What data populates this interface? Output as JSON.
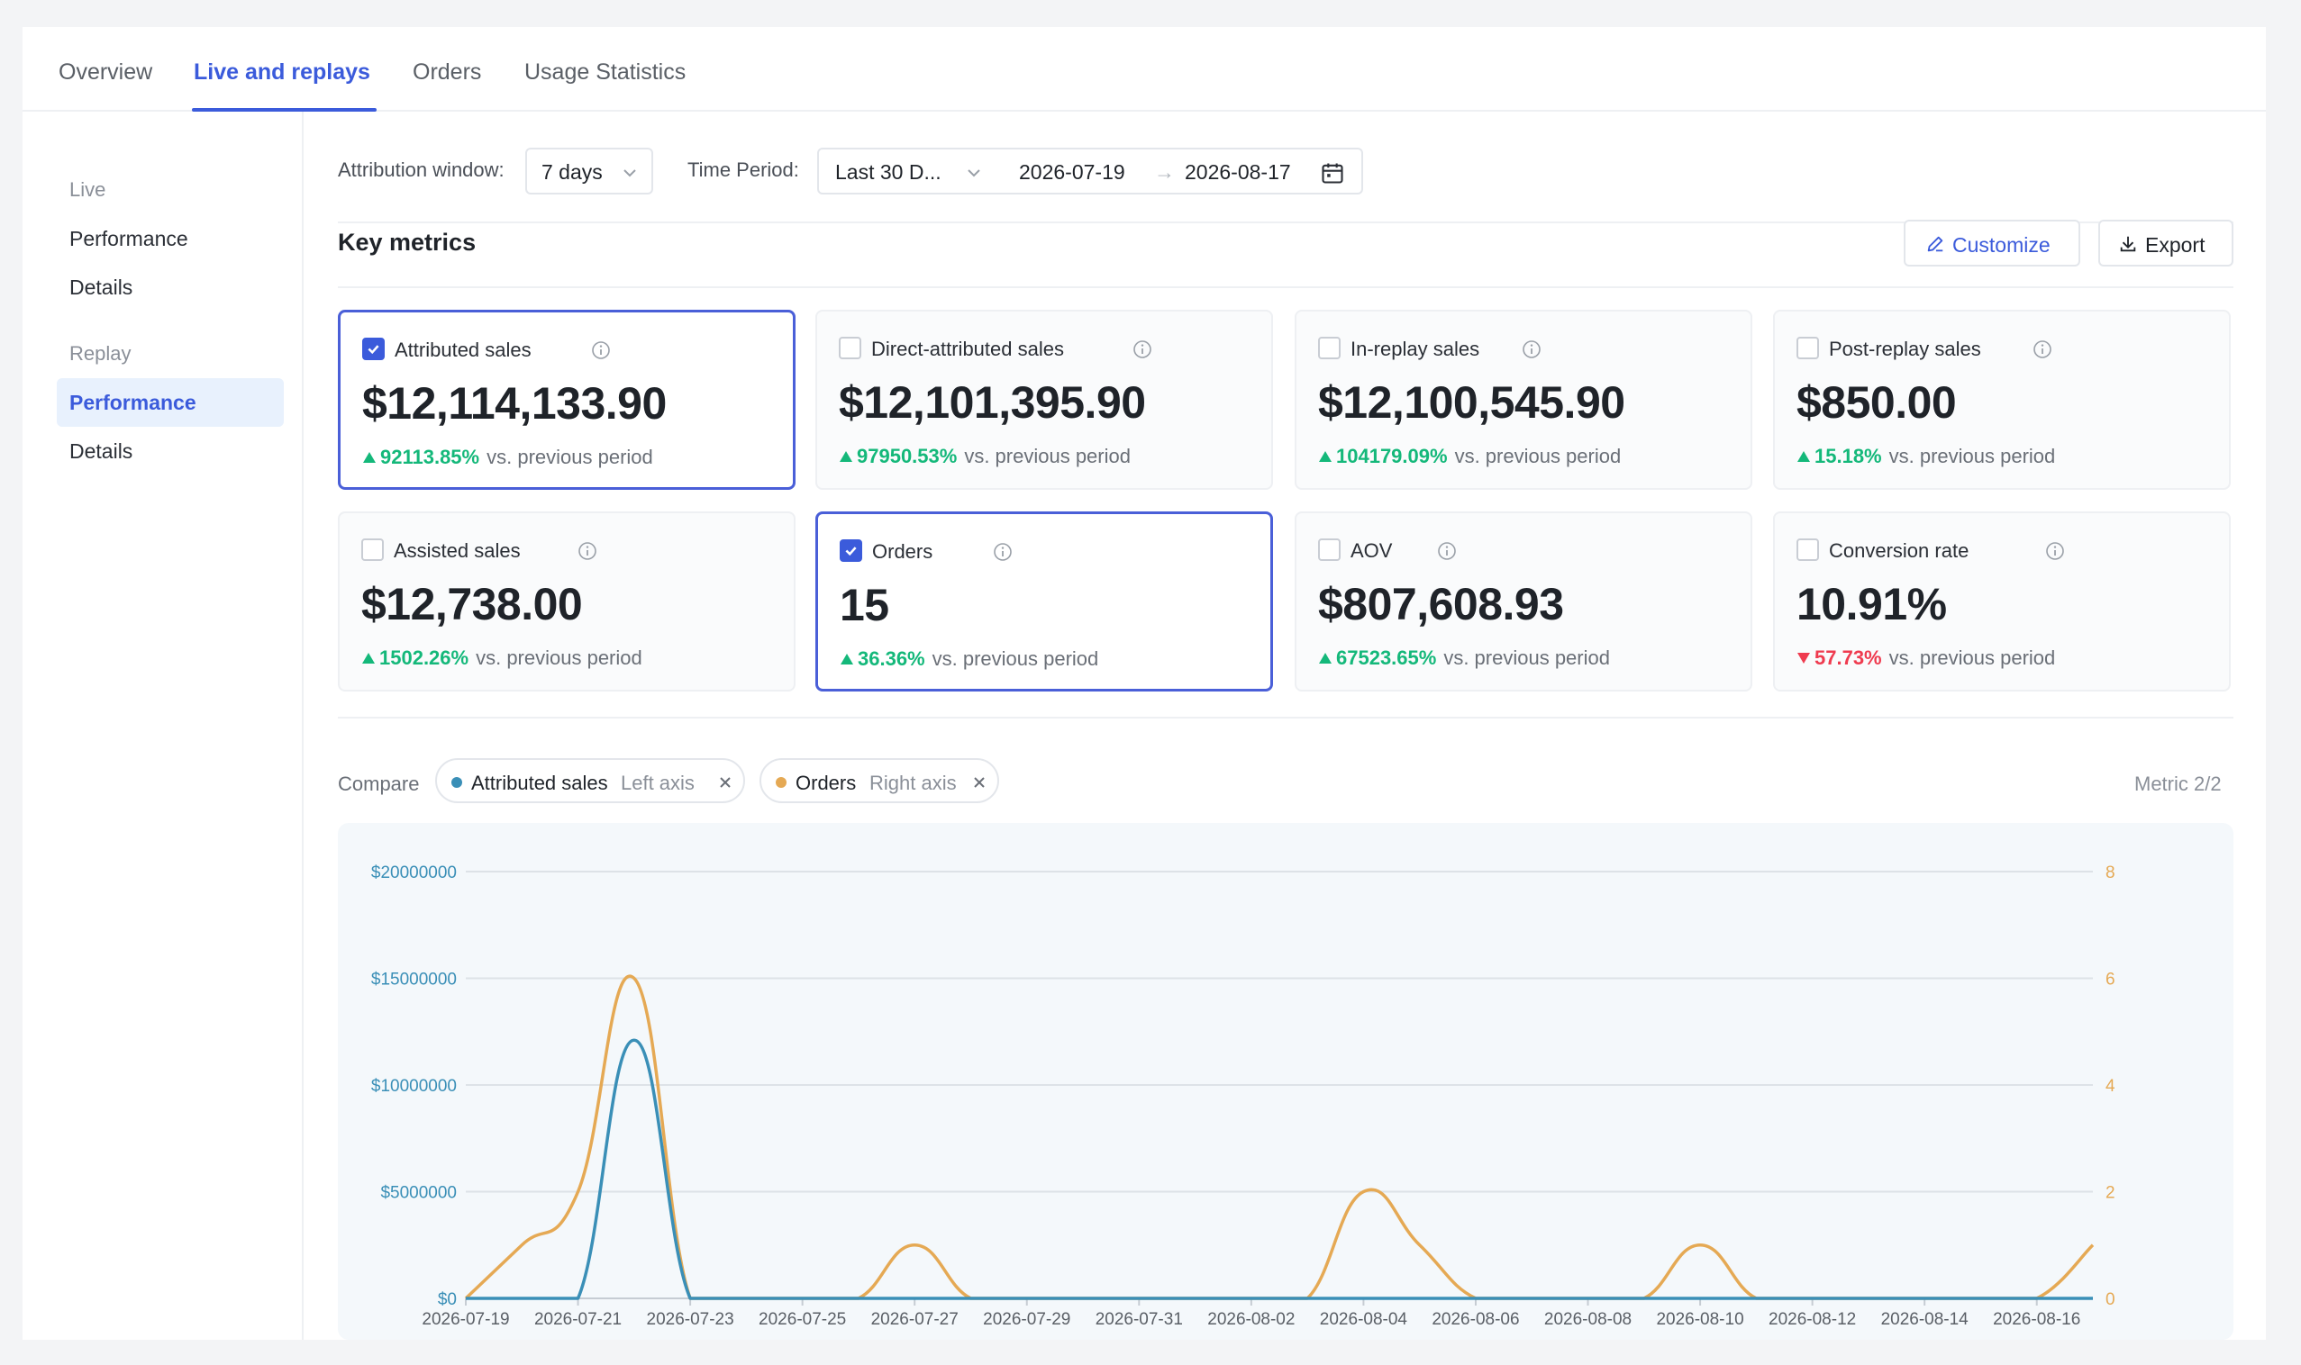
{
  "tabs": [
    {
      "label": "Overview"
    },
    {
      "label": "Live and replays"
    },
    {
      "label": "Orders"
    },
    {
      "label": "Usage Statistics"
    }
  ],
  "sidebar": {
    "live_group": "Live",
    "live_items": [
      "Performance",
      "Details"
    ],
    "replay_group": "Replay",
    "replay_items": [
      "Performance",
      "Details"
    ]
  },
  "filters": {
    "attribution_label": "Attribution window:",
    "attribution_value": "7 days",
    "time_label": "Time Period:",
    "time_value": "Last 30 D...",
    "date_start": "2026-07-19",
    "date_end": "2026-08-17",
    "date_sep": "→"
  },
  "key_metrics": {
    "title": "Key metrics",
    "customize_label": "Customize",
    "export_label": "Export"
  },
  "cards": [
    {
      "label": "Attributed sales",
      "value": "$12,114,133.90",
      "change": "92113.85%",
      "direction": "up",
      "checked": true
    },
    {
      "label": "Direct-attributed sales",
      "value": "$12,101,395.90",
      "change": "97950.53%",
      "direction": "up",
      "checked": false
    },
    {
      "label": "In-replay sales",
      "value": "$12,100,545.90",
      "change": "104179.09%",
      "direction": "up",
      "checked": false
    },
    {
      "label": "Post-replay sales",
      "value": "$850.00",
      "change": "15.18%",
      "direction": "up",
      "checked": false
    },
    {
      "label": "Assisted sales",
      "value": "$12,738.00",
      "change": "1502.26%",
      "direction": "up",
      "checked": false
    },
    {
      "label": "Orders",
      "value": "15",
      "change": "36.36%",
      "direction": "up",
      "checked": true
    },
    {
      "label": "AOV",
      "value": "$807,608.93",
      "change": "67523.65%",
      "direction": "up",
      "checked": false
    },
    {
      "label": "Conversion rate",
      "value": "10.91%",
      "change": "57.73%",
      "direction": "down",
      "checked": false
    }
  ],
  "vs_text": "vs. previous period",
  "compare": {
    "label": "Compare",
    "chips": [
      {
        "name": "Attributed sales",
        "axis": "Left axis",
        "color": "#3a8fb7"
      },
      {
        "name": "Orders",
        "axis": "Right axis",
        "color": "#e5a954"
      }
    ],
    "count": "Metric 2/2"
  },
  "colors": {
    "accent": "#3b5bdb",
    "up": "#14b87a",
    "down": "#ef3b4f",
    "left_axis": "#3a8fb7",
    "right_axis": "#e5a954"
  },
  "chart_data": {
    "type": "line",
    "x": [
      "2026-07-19",
      "2026-07-20",
      "2026-07-21",
      "2026-07-22",
      "2026-07-23",
      "2026-07-24",
      "2026-07-25",
      "2026-07-26",
      "2026-07-27",
      "2026-07-28",
      "2026-07-29",
      "2026-07-30",
      "2026-07-31",
      "2026-08-01",
      "2026-08-02",
      "2026-08-03",
      "2026-08-04",
      "2026-08-05",
      "2026-08-06",
      "2026-08-07",
      "2026-08-08",
      "2026-08-09",
      "2026-08-10",
      "2026-08-11",
      "2026-08-12",
      "2026-08-13",
      "2026-08-14",
      "2026-08-15",
      "2026-08-16",
      "2026-08-17"
    ],
    "x_tick_labels": [
      "2026-07-19",
      "2026-07-21",
      "2026-07-23",
      "2026-07-25",
      "2026-07-27",
      "2026-07-29",
      "2026-07-31",
      "2026-08-02",
      "2026-08-04",
      "2026-08-06",
      "2026-08-08",
      "2026-08-10",
      "2026-08-12",
      "2026-08-14",
      "2026-08-16"
    ],
    "series": [
      {
        "name": "Attributed sales",
        "axis": "left",
        "values": [
          0,
          0,
          0,
          12100000,
          0,
          0,
          0,
          0,
          0,
          0,
          0,
          0,
          0,
          0,
          0,
          0,
          0,
          0,
          0,
          0,
          0,
          0,
          0,
          0,
          0,
          0,
          0,
          0,
          0,
          0
        ]
      },
      {
        "name": "Orders",
        "axis": "right",
        "values": [
          0,
          1,
          2,
          6,
          0,
          0,
          0,
          0,
          1,
          0,
          0,
          0,
          0,
          0,
          0,
          0,
          2,
          1,
          0,
          0,
          0,
          0,
          1,
          0,
          0,
          0,
          0,
          0,
          0,
          1
        ]
      }
    ],
    "y_left": {
      "min": 0,
      "max": 20000000,
      "ticks": [
        0,
        5000000,
        10000000,
        15000000,
        20000000
      ],
      "tick_labels": [
        "$0",
        "$5000000",
        "$10000000",
        "$15000000",
        "$20000000"
      ]
    },
    "y_right": {
      "min": 0,
      "max": 8,
      "ticks": [
        0,
        2,
        4,
        6,
        8
      ],
      "tick_labels": [
        "0",
        "2",
        "4",
        "6",
        "8"
      ]
    },
    "grid": true
  }
}
